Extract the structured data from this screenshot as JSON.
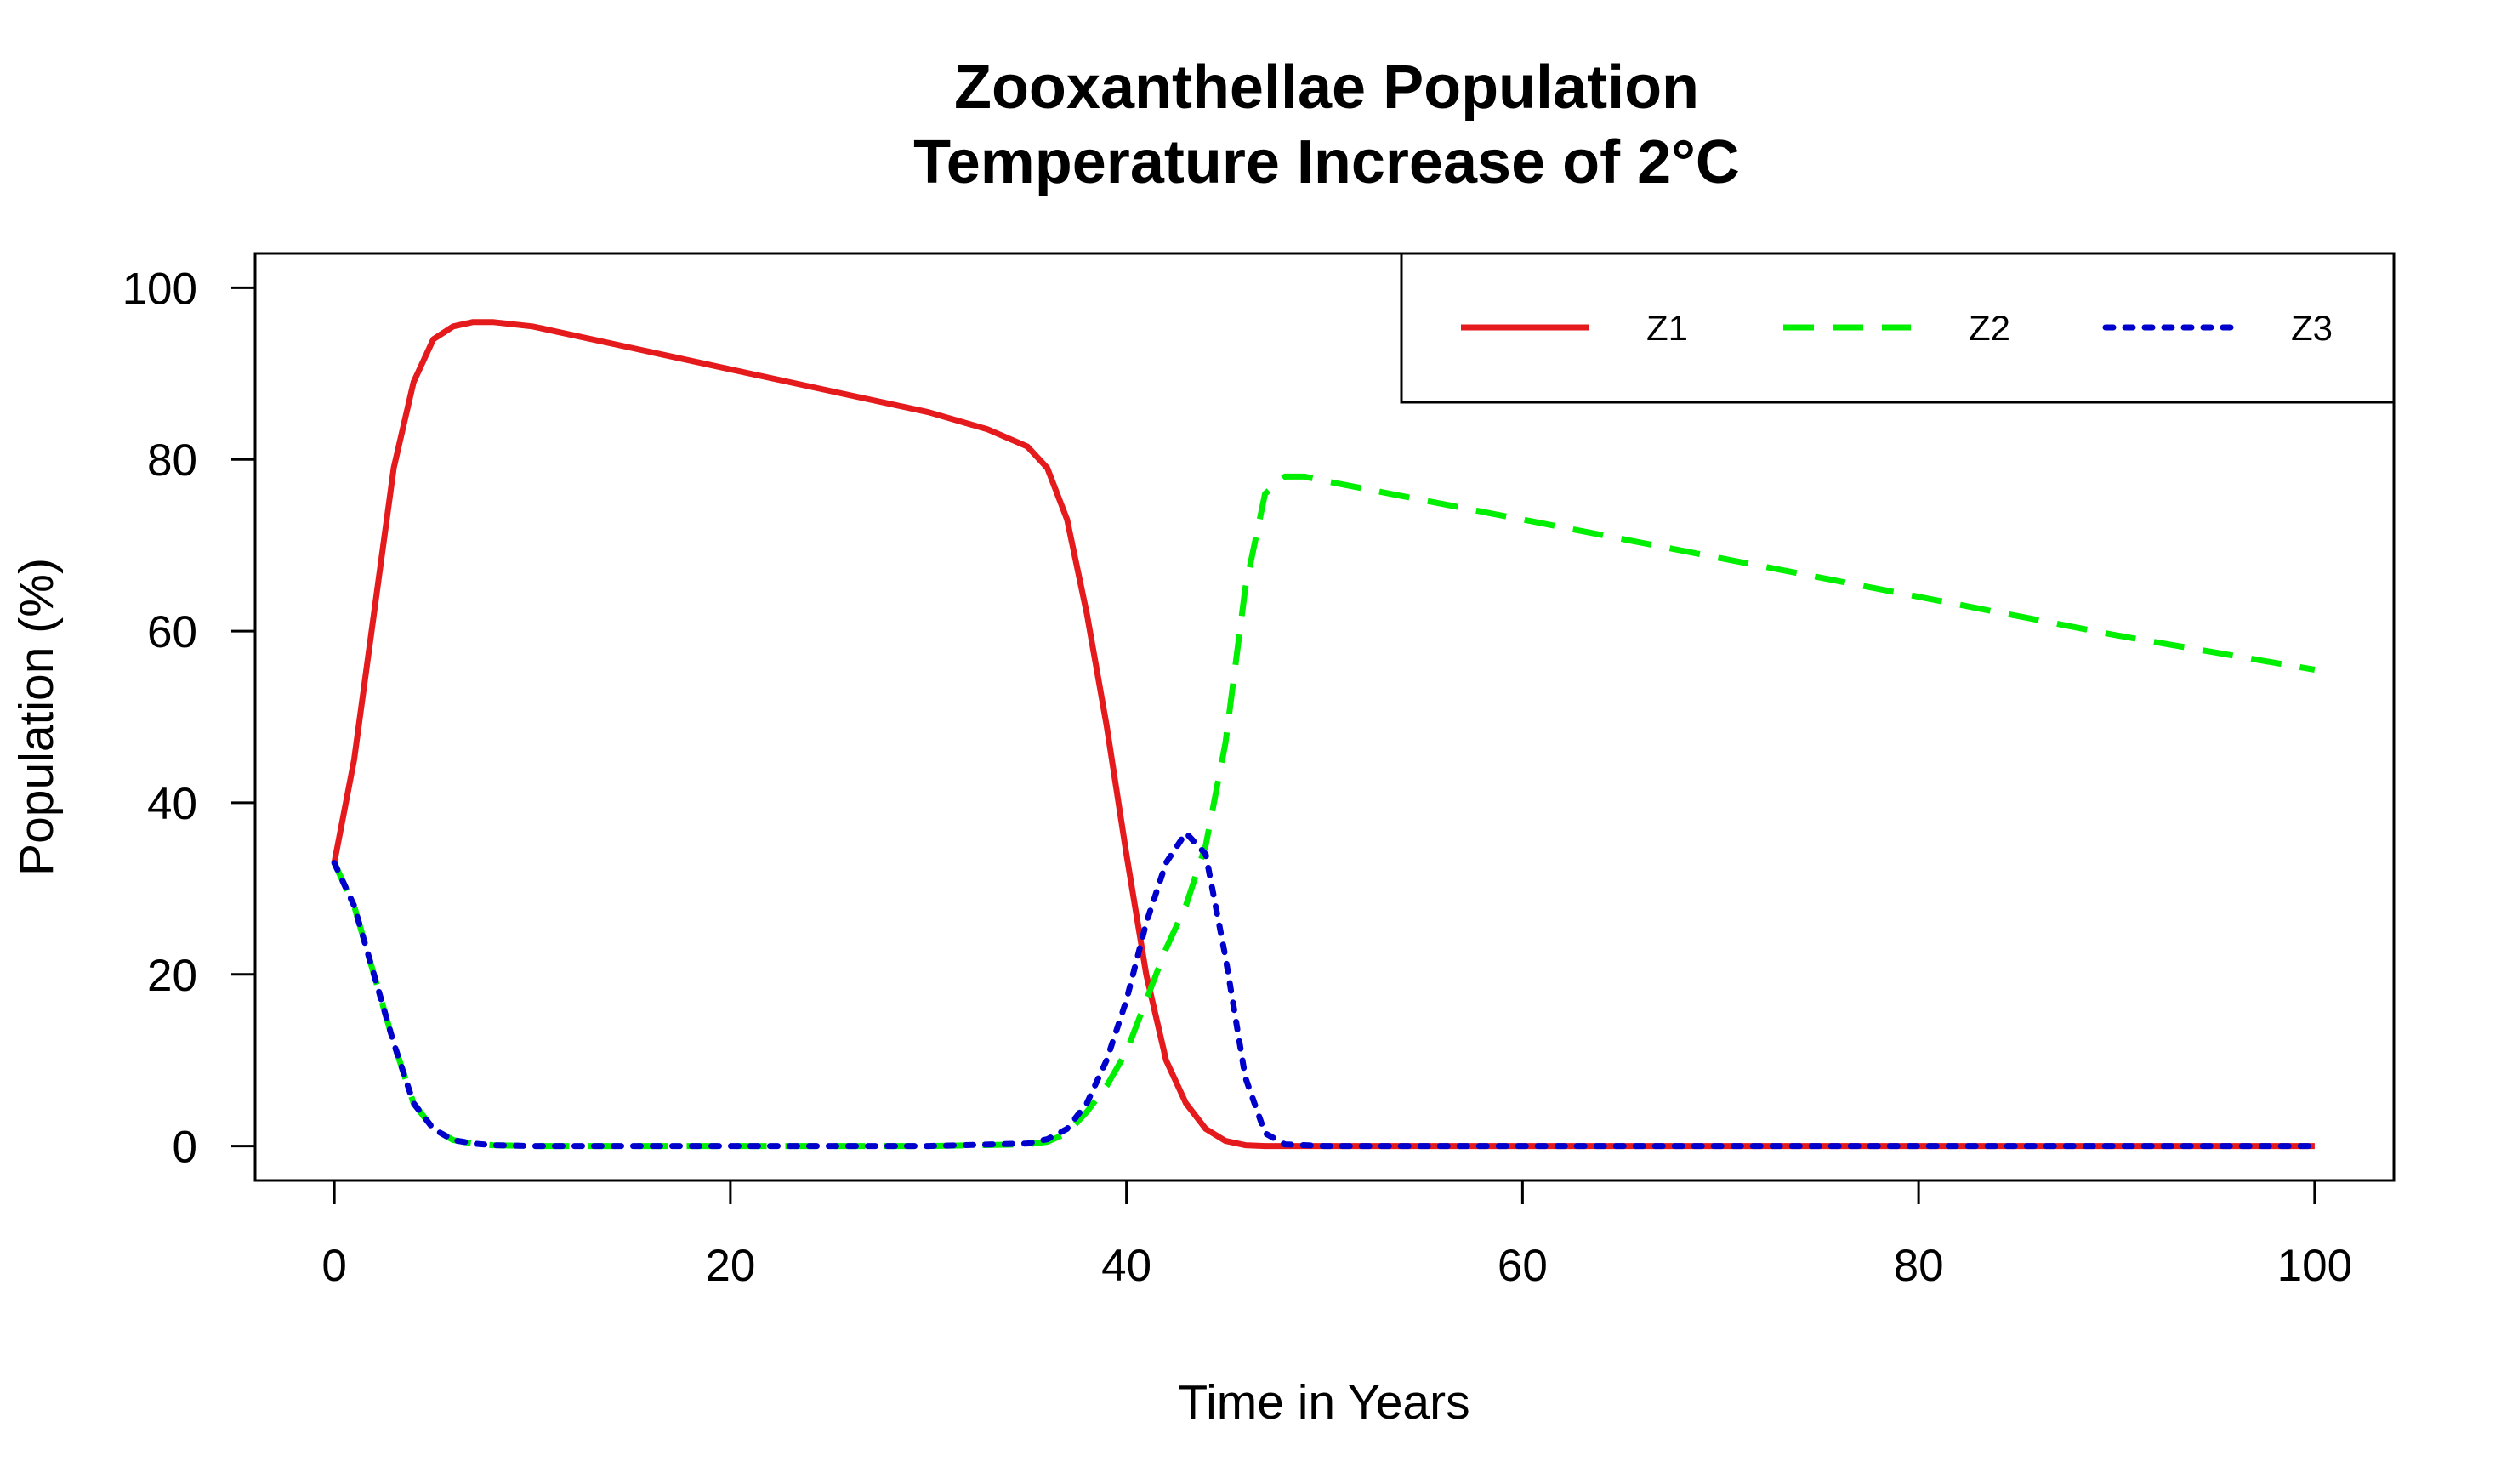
{
  "chart_data": {
    "type": "line",
    "title": "Zooxanthellae Population",
    "subtitle": "Temperature Increase of 2°C",
    "xlabel": "Time in Years",
    "ylabel": "Population (%)",
    "xlim": [
      -4,
      104
    ],
    "ylim": [
      -4,
      104
    ],
    "xticks": [
      0,
      20,
      40,
      60,
      80,
      100
    ],
    "yticks": [
      0,
      20,
      40,
      60,
      80,
      100
    ],
    "grid": false,
    "legend_position": "top-right",
    "series": [
      {
        "name": "Z1",
        "color": "#e41a1c",
        "dash": "solid",
        "x": [
          0,
          1,
          2,
          3,
          4,
          5,
          6,
          7,
          8,
          10,
          15,
          20,
          25,
          30,
          33,
          35,
          36,
          37,
          38,
          39,
          40,
          41,
          42,
          43,
          44,
          45,
          46,
          47,
          48,
          50,
          60,
          70,
          80,
          90,
          100
        ],
        "y": [
          33,
          45,
          62,
          79,
          89,
          94,
          95.5,
          96,
          96,
          95.5,
          93,
          90.5,
          88,
          85.5,
          83.5,
          81.5,
          79,
          73,
          62,
          49,
          34,
          20,
          10,
          5,
          2,
          0.6,
          0.1,
          0,
          0,
          0,
          0,
          0,
          0,
          0,
          0
        ]
      },
      {
        "name": "Z2",
        "color": "#00ee00",
        "dash": "dashed",
        "x": [
          0,
          1,
          2,
          3,
          4,
          5,
          6,
          7,
          8,
          10,
          15,
          20,
          25,
          30,
          35,
          36,
          37,
          38,
          39,
          40,
          41,
          42,
          43,
          44,
          45,
          46,
          47,
          48,
          49,
          50,
          60,
          70,
          80,
          90,
          100
        ],
        "y": [
          33,
          28,
          20,
          12,
          5,
          2,
          0.7,
          0.3,
          0.1,
          0,
          0,
          0,
          0,
          0,
          0.2,
          0.5,
          1.5,
          4,
          7,
          11,
          17,
          23,
          28,
          35,
          47,
          65,
          76,
          78,
          78,
          77.5,
          73,
          68.5,
          64,
          59.5,
          55.5
        ]
      },
      {
        "name": "Z3",
        "color": "#0000cd",
        "dash": "dotted",
        "x": [
          0,
          1,
          2,
          3,
          4,
          5,
          6,
          7,
          8,
          10,
          15,
          20,
          25,
          30,
          35,
          36,
          37,
          38,
          39,
          40,
          41,
          42,
          43,
          44,
          45,
          46,
          47,
          48,
          50,
          60,
          70,
          80,
          90,
          100
        ],
        "y": [
          33,
          28,
          20,
          12,
          5,
          2,
          0.7,
          0.3,
          0.1,
          0,
          0,
          0,
          0,
          0,
          0.3,
          0.8,
          2,
          5,
          10,
          17,
          26,
          33,
          36.5,
          34,
          22,
          8,
          1.5,
          0.2,
          0,
          0,
          0,
          0,
          0,
          0
        ]
      }
    ]
  }
}
